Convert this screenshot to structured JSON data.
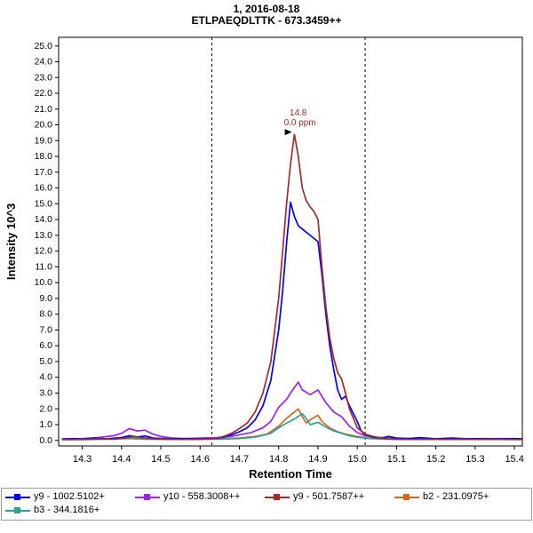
{
  "chart_data": {
    "type": "line",
    "title": "1, 2016-08-18",
    "subtitle": "ETLPAEQDLTTK - 673.3459++",
    "xlabel": "Retention Time",
    "ylabel": "Intensity 10^3",
    "xlim": [
      14.24,
      15.42
    ],
    "ylim": [
      -0.35,
      25.55
    ],
    "x_ticks": [
      14.3,
      14.4,
      14.5,
      14.6,
      14.7,
      14.8,
      14.9,
      15.0,
      15.1,
      15.2,
      15.3,
      15.4
    ],
    "y_ticks": {
      "min": 0,
      "max": 25,
      "step": 1,
      "decimals": 1
    },
    "grid": false,
    "legend_position": "bottom",
    "boundaries": [
      14.63,
      15.02
    ],
    "annotation": {
      "x": 14.845,
      "y": 19.4,
      "lines": [
        "14.8",
        "0.0 ppm"
      ],
      "color": "#a52a2a"
    },
    "draw_order": [
      1,
      3,
      4,
      0,
      2
    ],
    "series": [
      {
        "name": "y9 - 1002.5102+",
        "color": "#0000ff",
        "points": [
          [
            14.25,
            0.08
          ],
          [
            14.28,
            0.12
          ],
          [
            14.3,
            0.08
          ],
          [
            14.33,
            0.15
          ],
          [
            14.36,
            0.1
          ],
          [
            14.4,
            0.18
          ],
          [
            14.42,
            0.3
          ],
          [
            14.44,
            0.22
          ],
          [
            14.46,
            0.28
          ],
          [
            14.48,
            0.15
          ],
          [
            14.52,
            0.1
          ],
          [
            14.56,
            0.12
          ],
          [
            14.6,
            0.1
          ],
          [
            14.64,
            0.12
          ],
          [
            14.66,
            0.2
          ],
          [
            14.68,
            0.35
          ],
          [
            14.7,
            0.55
          ],
          [
            14.72,
            0.8
          ],
          [
            14.74,
            1.3
          ],
          [
            14.76,
            2.2
          ],
          [
            14.78,
            3.8
          ],
          [
            14.8,
            7.0
          ],
          [
            14.81,
            9.5
          ],
          [
            14.82,
            12.5
          ],
          [
            14.83,
            15.1
          ],
          [
            14.84,
            14.2
          ],
          [
            14.85,
            13.6
          ],
          [
            14.86,
            13.4
          ],
          [
            14.88,
            13.0
          ],
          [
            14.9,
            12.6
          ],
          [
            14.91,
            10.5
          ],
          [
            14.92,
            8.0
          ],
          [
            14.93,
            6.0
          ],
          [
            14.94,
            4.5
          ],
          [
            14.95,
            3.2
          ],
          [
            14.96,
            2.6
          ],
          [
            14.97,
            2.8
          ],
          [
            14.98,
            2.2
          ],
          [
            15.0,
            1.2
          ],
          [
            15.01,
            0.6
          ],
          [
            15.02,
            0.35
          ],
          [
            15.04,
            0.2
          ],
          [
            15.06,
            0.15
          ],
          [
            15.08,
            0.25
          ],
          [
            15.1,
            0.15
          ],
          [
            15.13,
            0.12
          ],
          [
            15.16,
            0.18
          ],
          [
            15.2,
            0.1
          ],
          [
            15.24,
            0.15
          ],
          [
            15.28,
            0.1
          ],
          [
            15.32,
            0.12
          ],
          [
            15.36,
            0.1
          ],
          [
            15.4,
            0.12
          ],
          [
            15.42,
            0.1
          ]
        ]
      },
      {
        "name": "y10 - 558.3008++",
        "color": "#a020f0",
        "points": [
          [
            14.25,
            0.1
          ],
          [
            14.3,
            0.12
          ],
          [
            14.34,
            0.18
          ],
          [
            14.38,
            0.3
          ],
          [
            14.4,
            0.45
          ],
          [
            14.42,
            0.75
          ],
          [
            14.44,
            0.6
          ],
          [
            14.46,
            0.65
          ],
          [
            14.48,
            0.4
          ],
          [
            14.5,
            0.25
          ],
          [
            14.53,
            0.15
          ],
          [
            14.56,
            0.12
          ],
          [
            14.6,
            0.15
          ],
          [
            14.64,
            0.18
          ],
          [
            14.68,
            0.25
          ],
          [
            14.7,
            0.35
          ],
          [
            14.73,
            0.5
          ],
          [
            14.76,
            0.8
          ],
          [
            14.78,
            1.2
          ],
          [
            14.8,
            2.1
          ],
          [
            14.82,
            2.6
          ],
          [
            14.83,
            3.0
          ],
          [
            14.85,
            3.7
          ],
          [
            14.86,
            3.2
          ],
          [
            14.88,
            2.9
          ],
          [
            14.9,
            3.2
          ],
          [
            14.92,
            2.4
          ],
          [
            14.94,
            1.8
          ],
          [
            14.96,
            1.5
          ],
          [
            14.98,
            0.9
          ],
          [
            15.0,
            0.5
          ],
          [
            15.02,
            0.3
          ],
          [
            15.05,
            0.2
          ],
          [
            15.08,
            0.15
          ],
          [
            15.12,
            0.12
          ],
          [
            15.16,
            0.15
          ],
          [
            15.2,
            0.1
          ],
          [
            15.25,
            0.12
          ],
          [
            15.3,
            0.1
          ],
          [
            15.35,
            0.12
          ],
          [
            15.4,
            0.1
          ],
          [
            15.42,
            0.1
          ]
        ]
      },
      {
        "name": "y9 - 501.7587++",
        "color": "#a52a2a",
        "points": [
          [
            14.25,
            0.06
          ],
          [
            14.3,
            0.06
          ],
          [
            14.34,
            0.1
          ],
          [
            14.38,
            0.08
          ],
          [
            14.41,
            0.15
          ],
          [
            14.43,
            0.25
          ],
          [
            14.45,
            0.18
          ],
          [
            14.48,
            0.1
          ],
          [
            14.52,
            0.08
          ],
          [
            14.56,
            0.06
          ],
          [
            14.6,
            0.08
          ],
          [
            14.64,
            0.12
          ],
          [
            14.66,
            0.25
          ],
          [
            14.68,
            0.45
          ],
          [
            14.7,
            0.75
          ],
          [
            14.72,
            1.1
          ],
          [
            14.74,
            1.8
          ],
          [
            14.76,
            3.0
          ],
          [
            14.78,
            5.0
          ],
          [
            14.8,
            9.0
          ],
          [
            14.81,
            12.0
          ],
          [
            14.82,
            15.0
          ],
          [
            14.83,
            17.5
          ],
          [
            14.84,
            19.4
          ],
          [
            14.85,
            18.0
          ],
          [
            14.86,
            16.0
          ],
          [
            14.87,
            15.2
          ],
          [
            14.88,
            14.8
          ],
          [
            14.89,
            14.5
          ],
          [
            14.9,
            14.0
          ],
          [
            14.91,
            11.0
          ],
          [
            14.92,
            8.5
          ],
          [
            14.93,
            6.5
          ],
          [
            14.94,
            5.2
          ],
          [
            14.95,
            4.3
          ],
          [
            14.96,
            3.9
          ],
          [
            14.97,
            3.0
          ],
          [
            14.98,
            2.0
          ],
          [
            15.0,
            0.8
          ],
          [
            15.02,
            0.4
          ],
          [
            15.04,
            0.25
          ],
          [
            15.06,
            0.15
          ],
          [
            15.08,
            0.1
          ],
          [
            15.1,
            0.08
          ],
          [
            15.14,
            0.06
          ],
          [
            15.18,
            0.08
          ],
          [
            15.22,
            0.06
          ],
          [
            15.26,
            0.08
          ],
          [
            15.3,
            0.06
          ],
          [
            15.34,
            0.08
          ],
          [
            15.38,
            0.06
          ],
          [
            15.42,
            0.06
          ]
        ]
      },
      {
        "name": "b2 - 231.0975+",
        "color": "#d2691e",
        "points": [
          [
            14.25,
            0.05
          ],
          [
            14.3,
            0.06
          ],
          [
            14.35,
            0.08
          ],
          [
            14.4,
            0.12
          ],
          [
            14.43,
            0.18
          ],
          [
            14.46,
            0.12
          ],
          [
            14.5,
            0.08
          ],
          [
            14.55,
            0.06
          ],
          [
            14.6,
            0.08
          ],
          [
            14.65,
            0.1
          ],
          [
            14.7,
            0.15
          ],
          [
            14.74,
            0.25
          ],
          [
            14.77,
            0.4
          ],
          [
            14.8,
            0.9
          ],
          [
            14.82,
            1.4
          ],
          [
            14.84,
            1.8
          ],
          [
            14.85,
            2.0
          ],
          [
            14.86,
            1.5
          ],
          [
            14.87,
            1.1
          ],
          [
            14.88,
            1.3
          ],
          [
            14.9,
            1.6
          ],
          [
            14.91,
            1.2
          ],
          [
            14.93,
            0.8
          ],
          [
            14.95,
            0.55
          ],
          [
            14.97,
            0.4
          ],
          [
            15.0,
            0.25
          ],
          [
            15.03,
            0.15
          ],
          [
            15.06,
            0.1
          ],
          [
            15.1,
            0.08
          ],
          [
            15.15,
            0.06
          ],
          [
            15.2,
            0.08
          ],
          [
            15.26,
            0.06
          ],
          [
            15.32,
            0.08
          ],
          [
            15.38,
            0.06
          ],
          [
            15.42,
            0.06
          ]
        ]
      },
      {
        "name": "b3 - 344.1816+",
        "color": "#2aa198",
        "points": [
          [
            14.25,
            0.05
          ],
          [
            14.3,
            0.05
          ],
          [
            14.36,
            0.08
          ],
          [
            14.42,
            0.12
          ],
          [
            14.46,
            0.08
          ],
          [
            14.52,
            0.06
          ],
          [
            14.58,
            0.06
          ],
          [
            14.64,
            0.08
          ],
          [
            14.7,
            0.12
          ],
          [
            14.74,
            0.2
          ],
          [
            14.78,
            0.45
          ],
          [
            14.8,
            0.8
          ],
          [
            14.82,
            1.1
          ],
          [
            14.84,
            1.35
          ],
          [
            14.86,
            1.7
          ],
          [
            14.87,
            1.4
          ],
          [
            14.88,
            1.0
          ],
          [
            14.9,
            1.15
          ],
          [
            14.92,
            0.85
          ],
          [
            14.94,
            0.6
          ],
          [
            14.96,
            0.45
          ],
          [
            14.98,
            0.3
          ],
          [
            15.0,
            0.2
          ],
          [
            15.03,
            0.12
          ],
          [
            15.07,
            0.08
          ],
          [
            15.12,
            0.06
          ],
          [
            15.18,
            0.08
          ],
          [
            15.24,
            0.06
          ],
          [
            15.3,
            0.06
          ],
          [
            15.36,
            0.06
          ],
          [
            15.42,
            0.05
          ]
        ]
      }
    ]
  },
  "legend": {
    "rows": [
      [
        0,
        1,
        2,
        3
      ],
      [
        4
      ]
    ]
  }
}
